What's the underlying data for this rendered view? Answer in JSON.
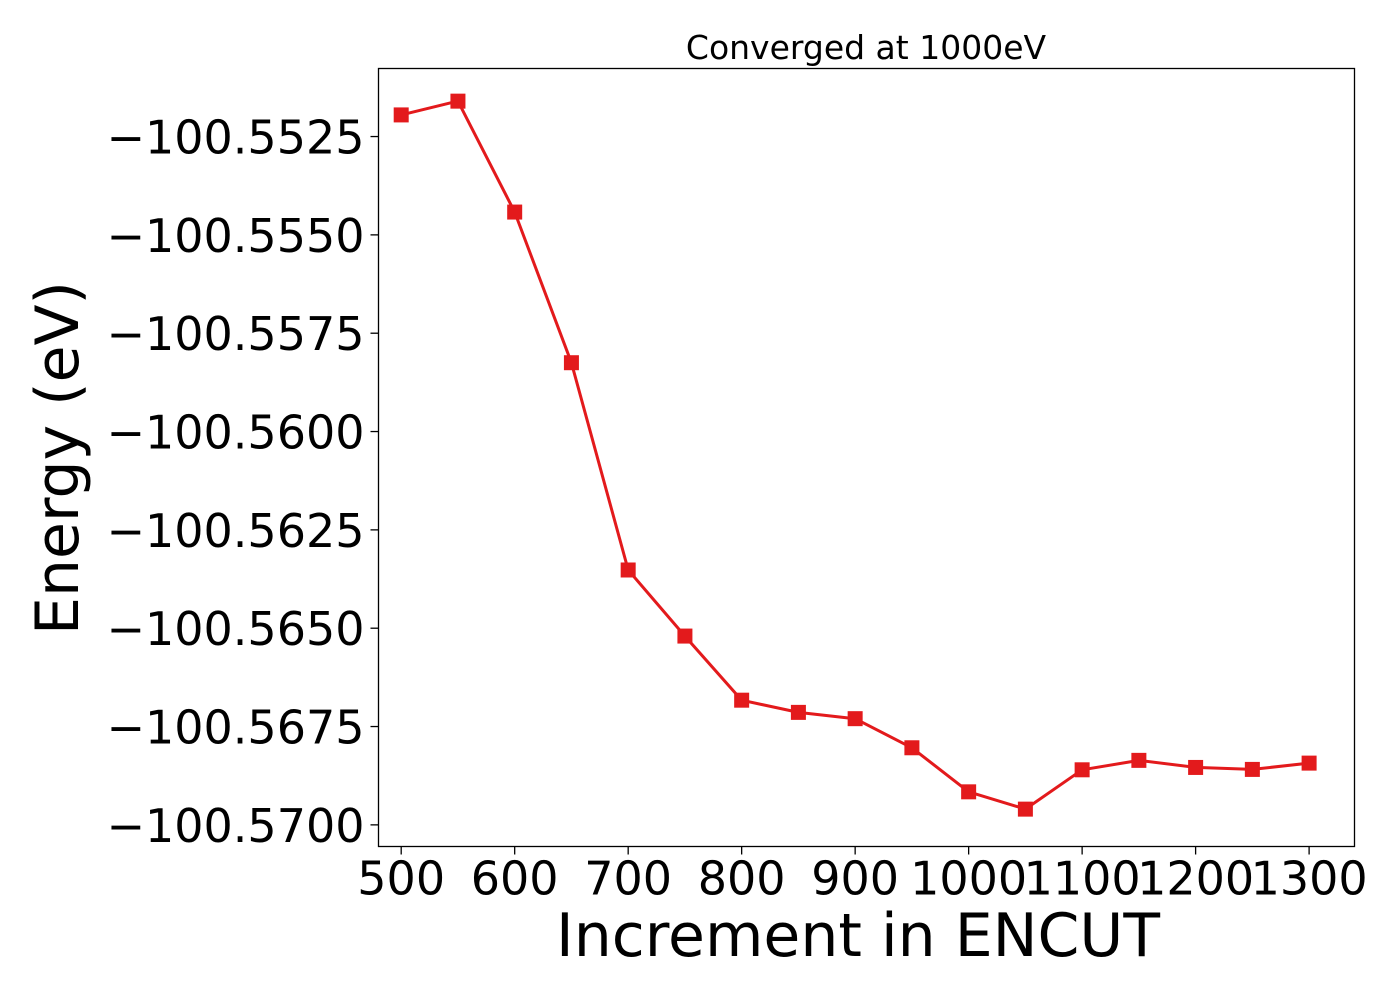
{
  "chart_data": {
    "type": "line",
    "title": "Converged at 1000eV",
    "xlabel": "Increment in ENCUT",
    "ylabel": "Energy (eV)",
    "x": [
      500,
      550,
      600,
      650,
      700,
      750,
      800,
      850,
      900,
      950,
      1000,
      1050,
      1100,
      1150,
      1200,
      1250,
      1300
    ],
    "series": [
      {
        "name": "",
        "color": "#e31a1c",
        "marker": "square",
        "values": [
          -100.55195,
          -100.5516,
          -100.55442,
          -100.55825,
          -100.56352,
          -100.5652,
          -100.56683,
          -100.56714,
          -100.5673,
          -100.56804,
          -100.56916,
          -100.5696,
          -100.5686,
          -100.56836,
          -100.56854,
          -100.56859,
          -100.56843
        ]
      }
    ],
    "xlim": [
      480,
      1340
    ],
    "ylim": [
      -100.57055,
      -100.55077
    ],
    "xticks": [
      500,
      600,
      700,
      800,
      900,
      1000,
      1100,
      1200,
      1300
    ],
    "xtick_labels": [
      "500",
      "600",
      "700",
      "800",
      "900",
      "1000",
      "1100",
      "1200",
      "1300"
    ],
    "yticks": [
      -100.5525,
      -100.555,
      -100.5575,
      -100.56,
      -100.5625,
      -100.565,
      -100.5675,
      -100.57
    ],
    "ytick_labels": [
      "−100.5525",
      "−100.5550",
      "−100.5575",
      "−100.5600",
      "−100.5625",
      "−100.5650",
      "−100.5675",
      "−100.5700"
    ],
    "grid": false,
    "legend": "none"
  }
}
